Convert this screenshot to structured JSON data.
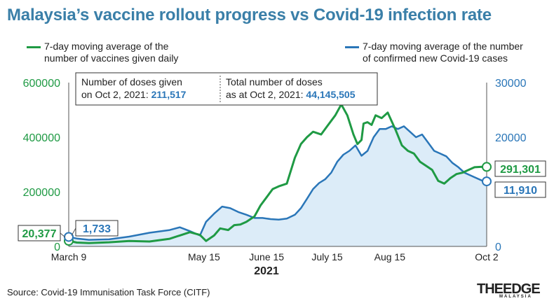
{
  "title": "Malaysia’s vaccine rollout progress vs Covid-19 infection rate",
  "legend": {
    "vaccines_line1": "7-day moving average of the",
    "vaccines_line2": "number of vaccines given daily",
    "cases_line1": "7-day moving average of the number",
    "cases_line2": "of confirmed new Covid-19 cases"
  },
  "info_box": {
    "doses_label_1": "Number of doses given",
    "doses_label_2": "on Oct 2, 2021:",
    "doses_value": "211,517",
    "total_label_1": "Total number of doses",
    "total_label_2": "as at Oct 2, 2021:",
    "total_value": "44,145,505"
  },
  "callouts": {
    "vax_start": "20,377",
    "cases_start": "1,733",
    "vax_end": "291,301",
    "cases_end": "11,910"
  },
  "year_label": "2021",
  "source": "Source: Covid-19 Immunisation Task Force (CITF)",
  "logo": {
    "main": "THEEDGE",
    "sub": "MALAYSIA"
  },
  "colors": {
    "vaccines": "#1f9a44",
    "cases": "#2a76b8",
    "cases_fill": "#dcecf8",
    "title": "#3a7fa8"
  },
  "chart_data": {
    "type": "line",
    "x_unit": "days since March 9, 2021",
    "x_ticks": [
      {
        "x": 0,
        "label": "March 9"
      },
      {
        "x": 67,
        "label": "May 15"
      },
      {
        "x": 98,
        "label": "June 15"
      },
      {
        "x": 128,
        "label": "July 15"
      },
      {
        "x": 159,
        "label": "Aug 15"
      },
      {
        "x": 207,
        "label": "Oct 2"
      }
    ],
    "xlim": [
      0,
      207
    ],
    "y_left": {
      "label": "",
      "lim": [
        0,
        600000
      ],
      "ticks": [
        0,
        200000,
        400000,
        600000
      ]
    },
    "y_right": {
      "label": "",
      "lim": [
        0,
        30000
      ],
      "ticks": [
        0,
        10000,
        20000,
        30000
      ]
    },
    "grid": false,
    "series": [
      {
        "name": "7-day moving average of the number of vaccines given daily",
        "axis": "left",
        "color": "#1f9a44",
        "x": [
          0,
          4,
          10,
          20,
          30,
          40,
          50,
          55,
          60,
          65,
          68,
          72,
          75,
          79,
          82,
          85,
          88,
          92,
          95,
          98,
          101,
          104,
          108,
          112,
          115,
          118,
          121,
          125,
          128,
          132,
          135,
          138,
          141,
          143,
          145,
          146,
          148,
          150,
          152,
          155,
          158,
          162,
          165,
          168,
          171,
          174,
          177,
          180,
          183,
          186,
          189,
          192,
          195,
          198,
          201,
          204,
          207
        ],
        "y": [
          20377,
          14000,
          12000,
          15000,
          20000,
          18000,
          28000,
          40000,
          52000,
          42000,
          20000,
          40000,
          66000,
          60000,
          78000,
          80000,
          90000,
          110000,
          150000,
          180000,
          210000,
          220000,
          230000,
          325000,
          375000,
          400000,
          420000,
          410000,
          440000,
          480000,
          520000,
          480000,
          410000,
          375000,
          390000,
          450000,
          455000,
          445000,
          480000,
          470000,
          490000,
          425000,
          370000,
          350000,
          340000,
          310000,
          295000,
          280000,
          240000,
          230000,
          250000,
          265000,
          270000,
          280000,
          290000,
          291301,
          291301
        ]
      },
      {
        "name": "7-day moving average of the number of confirmed new Covid-19 cases",
        "axis": "right",
        "color": "#2a76b8",
        "x": [
          0,
          4,
          10,
          20,
          30,
          40,
          50,
          55,
          60,
          65,
          68,
          72,
          76,
          80,
          84,
          88,
          92,
          96,
          100,
          104,
          108,
          112,
          115,
          118,
          121,
          124,
          127,
          130,
          133,
          136,
          139,
          142,
          145,
          148,
          151,
          154,
          157,
          160,
          163,
          166,
          169,
          172,
          175,
          178,
          181,
          184,
          187,
          190,
          193,
          196,
          199,
          202,
          205,
          207
        ],
        "y": [
          1733,
          1450,
          1200,
          1300,
          1800,
          2500,
          3000,
          3500,
          2800,
          2000,
          4500,
          6000,
          7300,
          7000,
          6300,
          5800,
          5200,
          5200,
          5000,
          4900,
          5100,
          5800,
          7000,
          8700,
          10500,
          11600,
          12300,
          13500,
          15500,
          16800,
          17500,
          18500,
          16600,
          17500,
          20000,
          21500,
          21500,
          22000,
          21500,
          22000,
          21000,
          20000,
          20500,
          19000,
          17500,
          17000,
          16500,
          15300,
          14500,
          13500,
          13000,
          12500,
          12000,
          11910
        ]
      }
    ]
  }
}
